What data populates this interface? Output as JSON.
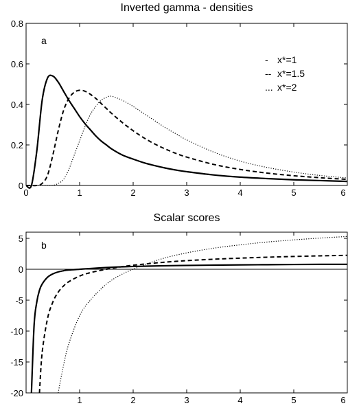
{
  "chart_data": [
    {
      "type": "line",
      "title": "Inverted gamma - densities",
      "panel_label": "a",
      "xlabel": "",
      "ylabel": "",
      "xlim": [
        0,
        6
      ],
      "ylim": [
        0,
        0.8
      ],
      "xticks": [
        0,
        1,
        2,
        3,
        4,
        5,
        6
      ],
      "yticks": [
        0,
        0.2,
        0.4,
        0.6,
        0.8
      ],
      "xtick_labels": [
        "0",
        "1",
        "2",
        "3",
        "4",
        "5",
        "6"
      ],
      "ytick_labels": [
        "0",
        "0.2",
        "0.4",
        "0.6",
        "0.8"
      ],
      "grid": false,
      "legend_position": "top-right",
      "x": [
        0,
        0.1,
        0.2,
        0.3,
        0.4,
        0.5,
        0.6,
        0.7,
        0.8,
        0.9,
        1.0,
        1.1,
        1.2,
        1.3,
        1.4,
        1.5,
        1.6,
        1.8,
        2.0,
        2.2,
        2.4,
        2.6,
        2.8,
        3.0,
        3.5,
        4.0,
        4.5,
        5.0,
        5.5,
        6.0
      ],
      "series": [
        {
          "name": "x*=1",
          "legend_marker": "-",
          "style": "solid",
          "values": [
            0,
            0.0,
            0.17,
            0.42,
            0.53,
            0.54,
            0.51,
            0.465,
            0.42,
            0.38,
            0.34,
            0.305,
            0.275,
            0.245,
            0.22,
            0.2,
            0.18,
            0.15,
            0.13,
            0.112,
            0.098,
            0.086,
            0.076,
            0.068,
            0.052,
            0.041,
            0.034,
            0.028,
            0.024,
            0.02
          ]
        },
        {
          "name": "x*=1.5",
          "legend_marker": "--",
          "style": "dashed",
          "values": [
            0,
            0.0,
            0.0,
            0.01,
            0.05,
            0.15,
            0.27,
            0.37,
            0.43,
            0.46,
            0.47,
            0.465,
            0.45,
            0.43,
            0.405,
            0.38,
            0.355,
            0.31,
            0.27,
            0.235,
            0.205,
            0.18,
            0.158,
            0.14,
            0.104,
            0.079,
            0.061,
            0.048,
            0.038,
            0.03
          ]
        },
        {
          "name": "x*=2",
          "legend_marker": "...",
          "style": "dotted",
          "values": [
            0,
            0.0,
            0.0,
            0.0,
            0.0,
            0.0,
            0.01,
            0.03,
            0.08,
            0.15,
            0.22,
            0.29,
            0.35,
            0.39,
            0.42,
            0.435,
            0.44,
            0.42,
            0.39,
            0.355,
            0.32,
            0.285,
            0.255,
            0.225,
            0.165,
            0.12,
            0.089,
            0.066,
            0.049,
            0.037
          ]
        }
      ]
    },
    {
      "type": "line",
      "title": "Scalar scores",
      "panel_label": "b",
      "xlabel": "",
      "ylabel": "",
      "xlim": [
        0,
        6
      ],
      "ylim": [
        -20,
        6
      ],
      "xticks": [
        1,
        2,
        3,
        4,
        5,
        6
      ],
      "yticks": [
        -20,
        -15,
        -10,
        -5,
        0,
        5
      ],
      "xtick_labels": [
        "1",
        "2",
        "3",
        "4",
        "5",
        "6"
      ],
      "ytick_labels": [
        "-20",
        "-15",
        "-10",
        "-5",
        "0",
        "5"
      ],
      "grid": false,
      "reference_line": 0,
      "x": [
        0.1,
        0.15,
        0.2,
        0.25,
        0.3,
        0.4,
        0.5,
        0.6,
        0.7,
        0.8,
        1.0,
        1.2,
        1.5,
        1.75,
        2.0,
        2.5,
        3.0,
        3.5,
        4.0,
        4.5,
        5.0,
        5.5,
        6.0
      ],
      "series": [
        {
          "name": "x*=1",
          "style": "solid",
          "values": [
            -20,
            -9.0,
            -5.3,
            -3.4,
            -2.4,
            -1.3,
            -0.75,
            -0.43,
            -0.24,
            -0.12,
            0.0,
            0.12,
            0.28,
            0.38,
            0.45,
            0.55,
            0.62,
            0.67,
            0.71,
            0.74,
            0.77,
            0.79,
            0.8
          ]
        },
        {
          "name": "x*=1.5",
          "style": "dashed",
          "values": [
            null,
            null,
            null,
            -20,
            -13.5,
            -8.0,
            -5.3,
            -3.7,
            -2.7,
            -2.0,
            -1.1,
            -0.55,
            0.0,
            0.36,
            0.65,
            1.08,
            1.39,
            1.62,
            1.8,
            1.95,
            2.07,
            2.17,
            2.25
          ]
        },
        {
          "name": "x*=2",
          "style": "dotted",
          "values": [
            null,
            null,
            null,
            null,
            null,
            null,
            null,
            -20,
            -15.5,
            -12.0,
            -7.5,
            -5.0,
            -2.4,
            -1.0,
            0.0,
            1.6,
            2.65,
            3.4,
            3.95,
            4.4,
            4.75,
            5.05,
            5.3
          ]
        }
      ]
    }
  ]
}
